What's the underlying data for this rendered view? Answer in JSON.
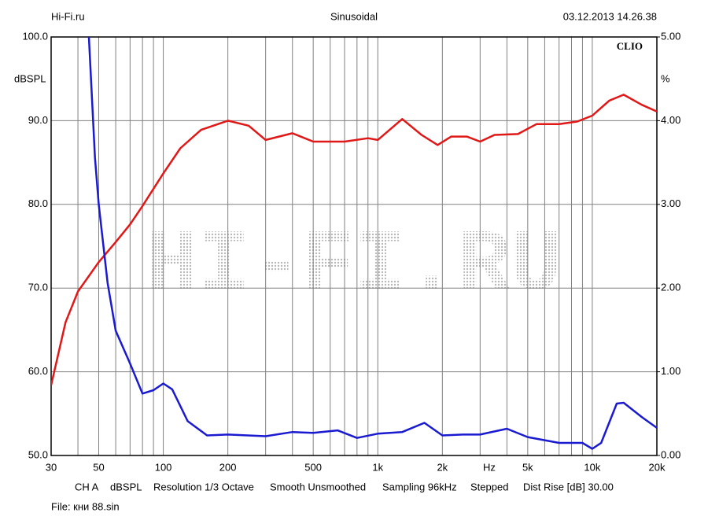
{
  "header": {
    "left": "Hi-Fi.ru",
    "center": "Sinusoidal",
    "right": "03.12.2013 14.26.38"
  },
  "chart_data": {
    "type": "line",
    "brand": "CLIO",
    "watermark": "HI-FI.RU",
    "ylabel": "dBSPL",
    "y2label": "%",
    "xlabel": "Hz",
    "xscale": "log",
    "grid": true,
    "xlim": [
      30,
      20000
    ],
    "xticks": [
      30,
      50,
      100,
      200,
      500,
      {
        "value": 1000,
        "label": "1k"
      },
      {
        "value": 2000,
        "label": "2k"
      },
      {
        "value": 5000,
        "label": "5k"
      },
      {
        "value": 10000,
        "label": "10k"
      },
      {
        "value": 20000,
        "label": "20k"
      }
    ],
    "x_minor_ticks": [
      40,
      60,
      70,
      80,
      90,
      300,
      400,
      600,
      700,
      800,
      900,
      3000,
      4000,
      6000,
      7000,
      8000,
      9000
    ],
    "ylim": [
      50,
      100
    ],
    "yticks": [
      {
        "value": 50,
        "label": "50.0"
      },
      {
        "value": 60,
        "label": "60.0"
      },
      {
        "value": 70,
        "label": "70.0"
      },
      {
        "value": 80,
        "label": "80.0"
      },
      {
        "value": 90,
        "label": "90.0"
      },
      {
        "value": 100,
        "label": "100.0"
      }
    ],
    "y2lim": [
      0,
      5
    ],
    "y2ticks": [
      {
        "value": 0,
        "label": "0.00"
      },
      {
        "value": 1,
        "label": "1.00"
      },
      {
        "value": 2,
        "label": "2.00"
      },
      {
        "value": 3,
        "label": "3.00"
      },
      {
        "value": 4,
        "label": "4.00"
      },
      {
        "value": 5,
        "label": "5.00"
      }
    ],
    "series": [
      {
        "color": "#e01818",
        "x": [
          30,
          35,
          40,
          50,
          60,
          70,
          80,
          100,
          120,
          150,
          200,
          250,
          300,
          400,
          500,
          700,
          900,
          1000,
          1300,
          1600,
          1900,
          2200,
          2600,
          3000,
          3500,
          4500,
          5500,
          7000,
          8500,
          10000,
          12000,
          14000,
          17000,
          20000
        ],
        "values": [
          58.4,
          65.9,
          69.6,
          73.1,
          75.5,
          77.6,
          79.8,
          83.7,
          86.7,
          88.9,
          90.0,
          89.4,
          87.7,
          88.5,
          87.5,
          87.5,
          87.9,
          87.7,
          90.2,
          88.3,
          87.1,
          88.1,
          88.1,
          87.5,
          88.3,
          88.4,
          89.6,
          89.6,
          89.9,
          90.6,
          92.4,
          93.1,
          91.9,
          91.1
        ]
      },
      {
        "color": "#1a1ad0",
        "axis": "y2",
        "x": [
          45,
          48,
          50,
          55,
          60,
          70,
          80,
          90,
          100,
          110,
          130,
          160,
          200,
          300,
          400,
          500,
          650,
          800,
          1000,
          1300,
          1650,
          2000,
          2500,
          3000,
          4000,
          5000,
          7000,
          9000,
          10000,
          11000,
          13000,
          14000,
          17000,
          20000
        ],
        "values": [
          5.0,
          3.56,
          3.0,
          2.06,
          1.49,
          1.1,
          0.74,
          0.78,
          0.86,
          0.79,
          0.41,
          0.24,
          0.25,
          0.23,
          0.28,
          0.27,
          0.3,
          0.21,
          0.26,
          0.28,
          0.39,
          0.24,
          0.25,
          0.25,
          0.32,
          0.22,
          0.15,
          0.15,
          0.08,
          0.15,
          0.62,
          0.63,
          0.46,
          0.33
        ]
      }
    ]
  },
  "footer": {
    "settings": [
      "CH A",
      "dBSPL",
      "Resolution 1/3 Octave",
      "Smooth Unsmoothed",
      "Sampling 96kHz",
      "Stepped",
      "Dist Rise [dB] 30.00"
    ],
    "file": "File: кни 88.sin"
  }
}
